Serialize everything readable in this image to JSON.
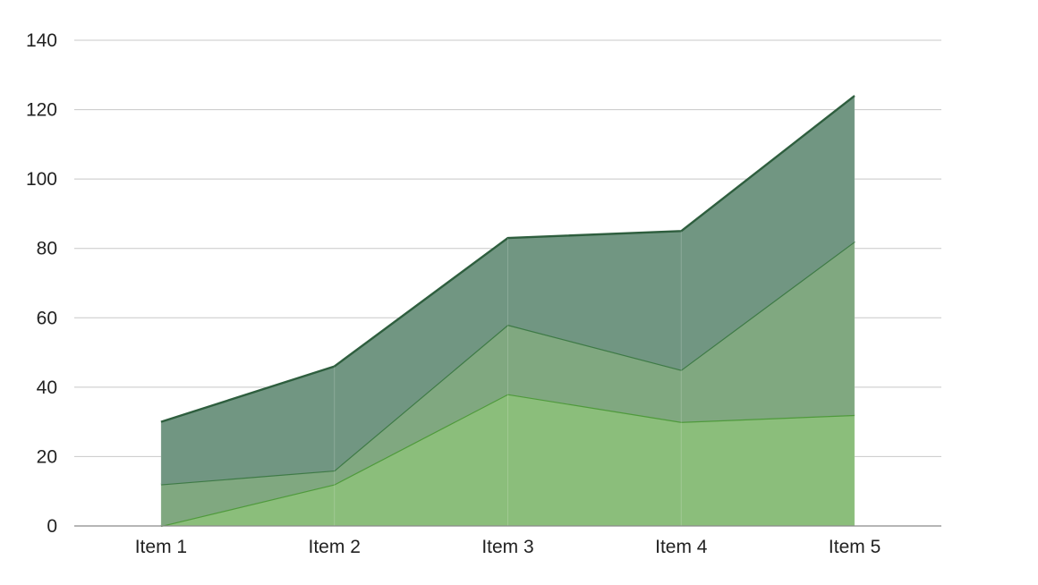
{
  "chart_data": {
    "type": "area",
    "stacked": true,
    "categories": [
      "Item 1",
      "Item 2",
      "Item 3",
      "Item 4",
      "Item 5"
    ],
    "series": [
      {
        "values": [
          0,
          12,
          38,
          30,
          32
        ],
        "fill": "#8bbe7b",
        "stroke": "#4f9a3c"
      },
      {
        "values": [
          12,
          4,
          20,
          15,
          50
        ],
        "fill": "#80a880",
        "stroke": "#3e7a46"
      },
      {
        "values": [
          18,
          30,
          25,
          40,
          42
        ],
        "fill": "#719682",
        "stroke": "#2e5e3e"
      }
    ],
    "ylim": [
      0,
      140
    ],
    "yticks": [
      0,
      20,
      40,
      60,
      80,
      100,
      120,
      140
    ],
    "grid": true,
    "legend": "none",
    "title": "",
    "xlabel": "",
    "ylabel": ""
  }
}
